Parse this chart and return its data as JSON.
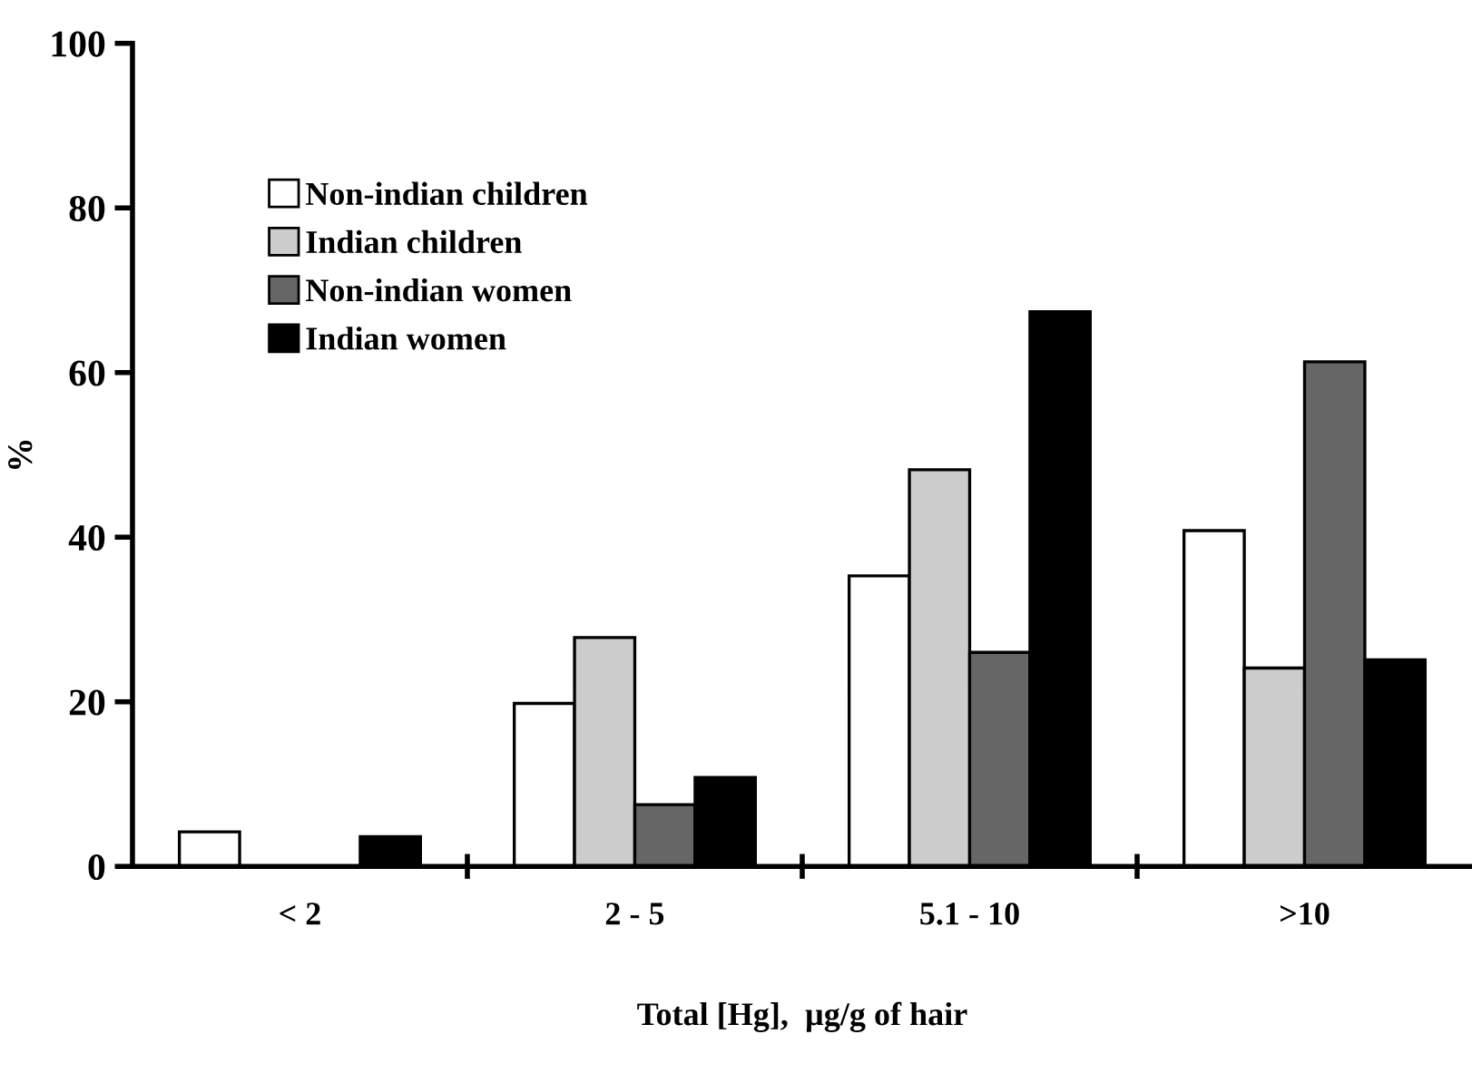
{
  "chart_data": {
    "type": "bar",
    "xlabel": "Total [Hg],  µg/g of hair",
    "ylabel": "%",
    "categories": [
      "< 2",
      "2 - 5",
      "5.1 - 10",
      ">10"
    ],
    "series": [
      {
        "name": "Non-indian children",
        "color": "#ffffff",
        "values": [
          4.2,
          19.8,
          35.3,
          40.8
        ]
      },
      {
        "name": "Indian children",
        "color": "#cccccc",
        "values": [
          0,
          27.8,
          48.2,
          24.1
        ]
      },
      {
        "name": "Non-indian women",
        "color": "#666666",
        "values": [
          0,
          7.5,
          26.0,
          61.3
        ]
      },
      {
        "name": "Indian women",
        "color": "#000000",
        "values": [
          3.6,
          10.8,
          67.4,
          25.1
        ]
      }
    ],
    "ylim": [
      0,
      100
    ],
    "yticks": [
      0,
      20,
      40,
      60,
      80,
      100
    ],
    "grid": false,
    "legend": "top left"
  }
}
